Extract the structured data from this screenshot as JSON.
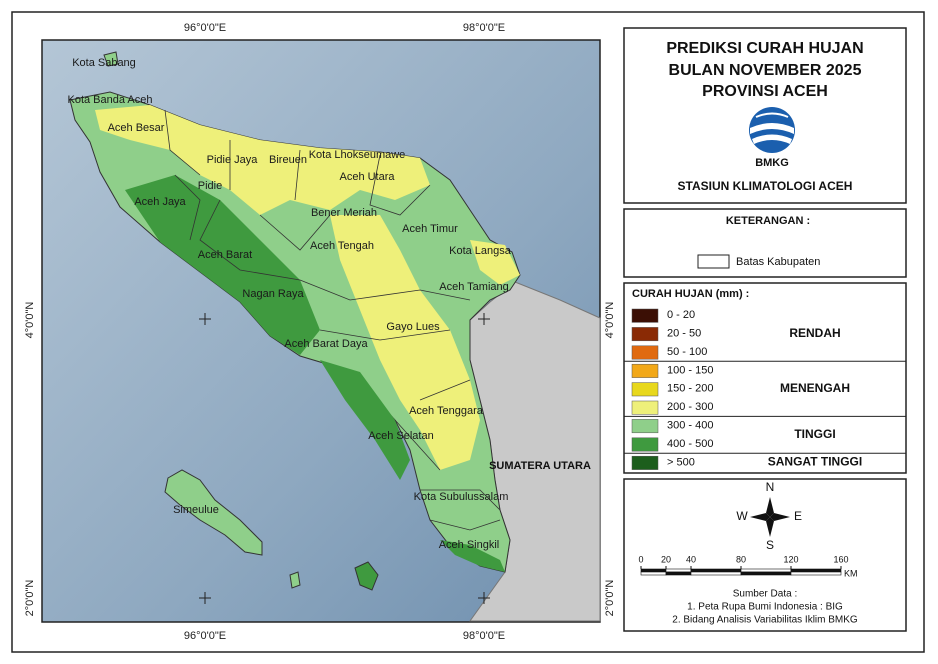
{
  "map": {
    "x_labels": [
      "96°0'0\"E",
      "98°0'0\"E"
    ],
    "y_labels": [
      "4°0'0\"N",
      "2°0'0\"N"
    ],
    "regions": [
      "Kota Sabang",
      "Kota Banda Aceh",
      "Aceh Besar",
      "Pidie Jaya",
      "Bireuen",
      "Kota Lhokseumawe",
      "Aceh Utara",
      "Pidie",
      "Aceh Jaya",
      "Bener Meriah",
      "Aceh Timur",
      "Aceh Tengah",
      "Kota Langsa",
      "Aceh Barat",
      "Aceh Tamiang",
      "Nagan Raya",
      "Gayo Lues",
      "Aceh Barat Daya",
      "Aceh Tenggara",
      "Aceh Selatan",
      "Kota Subulussalam",
      "Simeulue",
      "Aceh Singkil"
    ],
    "neighbor": "SUMATERA UTARA"
  },
  "header": {
    "title_lines": [
      "PREDIKSI CURAH HUJAN",
      "BULAN NOVEMBER 2025",
      "PROVINSI ACEH"
    ],
    "logo_text": "BMKG",
    "station": "STASIUN KLIMATOLOGI ACEH"
  },
  "keterangan": {
    "title": "KETERANGAN :",
    "boundary": "Batas Kabupaten"
  },
  "legend": {
    "title": "CURAH HUJAN (mm) :",
    "classes": [
      {
        "range": "0 - 20",
        "color": "#3b0f05"
      },
      {
        "range": "20 - 50",
        "color": "#8a2a05"
      },
      {
        "range": "50 - 100",
        "color": "#e06a10"
      },
      {
        "range": "100 - 150",
        "color": "#f2a818"
      },
      {
        "range": "150  - 200",
        "color": "#e8d81c"
      },
      {
        "range": "200 - 300",
        "color": "#eef07a"
      },
      {
        "range": "300 - 400",
        "color": "#8fcf8a"
      },
      {
        "range": "400 - 500",
        "color": "#3f9a3f"
      },
      {
        "range": "> 500",
        "color": "#1d5e1d"
      }
    ],
    "groups": [
      {
        "label": "RENDAH",
        "rows": 3
      },
      {
        "label": "MENENGAH",
        "rows": 3
      },
      {
        "label": "TINGGI",
        "rows": 2
      },
      {
        "label": "SANGAT TINGGI",
        "rows": 1
      }
    ]
  },
  "compass": {
    "n": "N",
    "s": "S",
    "e": "E",
    "w": "W"
  },
  "scale": {
    "ticks": [
      0,
      20,
      40,
      80,
      120,
      160
    ],
    "unit": "KM"
  },
  "source": {
    "title": "Sumber Data :",
    "items": [
      "1. Peta Rupa Bumi Indonesia : BIG",
      "2. Bidang Analisis Variabilitas Iklim BMKG"
    ]
  }
}
